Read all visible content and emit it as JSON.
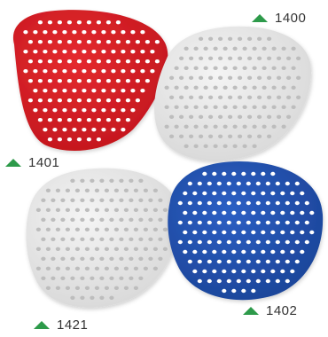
{
  "screens": [
    {
      "code": "1400",
      "color": "#e8e8e8",
      "name": "white"
    },
    {
      "code": "1401",
      "color": "#d81f26",
      "name": "red"
    },
    {
      "code": "1421",
      "color": "#e9e9e9",
      "name": "white"
    },
    {
      "code": "1402",
      "color": "#2453b4",
      "name": "blue"
    }
  ],
  "accent": "#2d9a4a",
  "icon": "triangle-icon"
}
